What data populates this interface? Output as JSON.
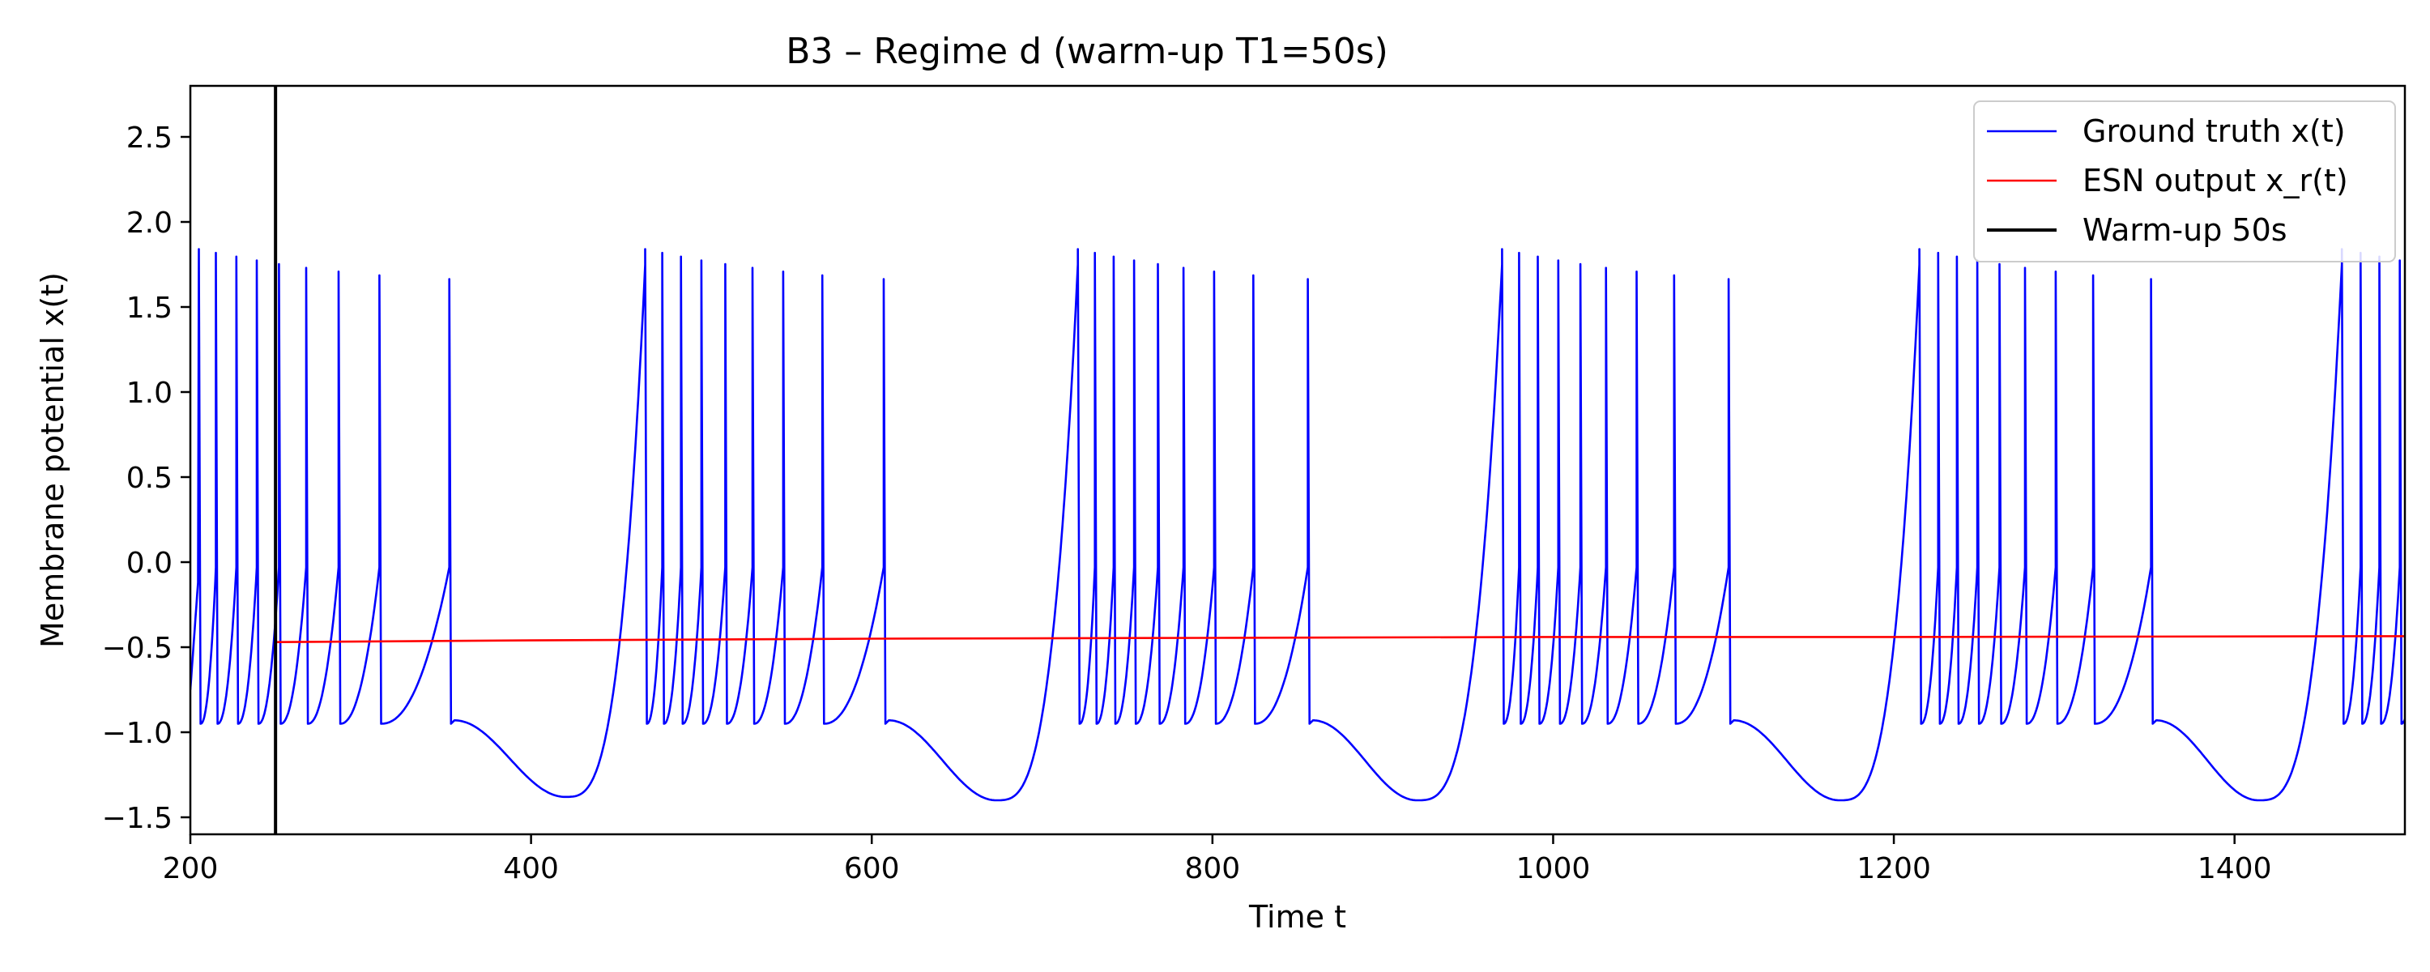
{
  "chart_data": {
    "type": "line",
    "title": "B3 – Regime d (warm-up T1=50s)",
    "xlabel": "Time t",
    "ylabel": "Membrane potential x(t)",
    "xlim": [
      200,
      1500
    ],
    "ylim": [
      -1.6,
      2.8
    ],
    "xticks": [
      200,
      400,
      600,
      800,
      1000,
      1200,
      1400
    ],
    "yticks": [
      -1.5,
      -1.0,
      -0.5,
      0.0,
      0.5,
      1.0,
      1.5,
      2.0,
      2.5
    ],
    "xtick_labels": [
      "200",
      "400",
      "600",
      "800",
      "1000",
      "1200",
      "1400"
    ],
    "ytick_labels": [
      "−1.5",
      "−1.0",
      "−0.5",
      "0.0",
      "0.5",
      "1.0",
      "1.5",
      "2.0",
      "2.5"
    ],
    "grid": false,
    "legend_position": "top-right",
    "series": [
      {
        "name": "Ground truth x(t)",
        "color": "#0000ff",
        "description": "Bursting neuron: bursts of spikes (peaks ~1.65–1.82) followed by slow trough to ~-1.40",
        "bursts": [
          {
            "spike_times": [
              205,
              215,
              227,
              239,
              252,
              268,
              287,
              311,
              352
            ],
            "trough_time": 420,
            "trough_value": -1.38
          },
          {
            "spike_times": [
              467,
              477,
              488,
              500,
              514,
              530,
              548,
              571,
              607
            ],
            "trough_time": 673,
            "trough_value": -1.4
          },
          {
            "spike_times": [
              721,
              731,
              742,
              754,
              768,
              783,
              801,
              824,
              856
            ],
            "trough_time": 920,
            "trough_value": -1.4
          },
          {
            "spike_times": [
              970,
              980,
              991,
              1003,
              1016,
              1031,
              1049,
              1071,
              1103
            ],
            "trough_time": 1168,
            "trough_value": -1.4
          },
          {
            "spike_times": [
              1215,
              1226,
              1237,
              1249,
              1262,
              1277,
              1295,
              1317,
              1351
            ],
            "trough_time": 1414,
            "trough_value": -1.4
          },
          {
            "spike_times": [
              1463,
              1474,
              1485,
              1497
            ],
            "trough_time": null,
            "trough_value": null
          }
        ]
      },
      {
        "name": "ESN output x_r(t)",
        "color": "#ff0000",
        "x": [
          250,
          400,
          600,
          800,
          1000,
          1200,
          1500
        ],
        "y": [
          -0.47,
          -0.46,
          -0.45,
          -0.445,
          -0.44,
          -0.44,
          -0.435
        ]
      },
      {
        "name": "Warm-up 50s",
        "color": "#000000",
        "type": "vline",
        "x": 250
      }
    ]
  }
}
